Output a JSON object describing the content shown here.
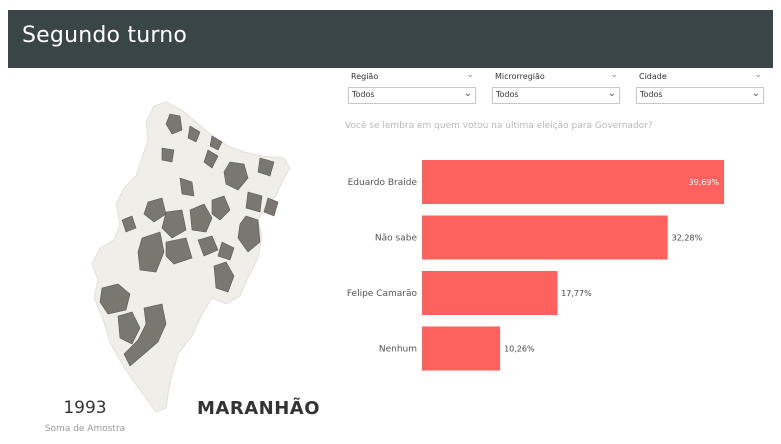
{
  "header": {
    "title": "Segundo turno"
  },
  "filters": [
    {
      "label": "Região",
      "value": "Todos"
    },
    {
      "label": "Microrregião",
      "value": "Todos"
    },
    {
      "label": "Cidade",
      "value": "Todos"
    }
  ],
  "map": {
    "state_name": "MARANHÃO",
    "stat_value": "1993",
    "stat_label": "Soma de Amostra"
  },
  "question": "Você se lembra em quem votou na última eleição para Governador?",
  "colors": {
    "bar": "#fd625e",
    "header": "#3a4548",
    "map_fill": "#efeee9",
    "map_highlight": "#7a7670"
  },
  "chart_data": {
    "type": "bar",
    "orientation": "horizontal",
    "categories": [
      "Eduardo Braide",
      "Não sabe",
      "Felipe Camarão",
      "Nenhum"
    ],
    "values": [
      39.69,
      32.28,
      17.77,
      10.26
    ],
    "value_labels": [
      "39,69%",
      "32,28%",
      "17,77%",
      "10,26%"
    ],
    "xlim": [
      0,
      50
    ]
  }
}
